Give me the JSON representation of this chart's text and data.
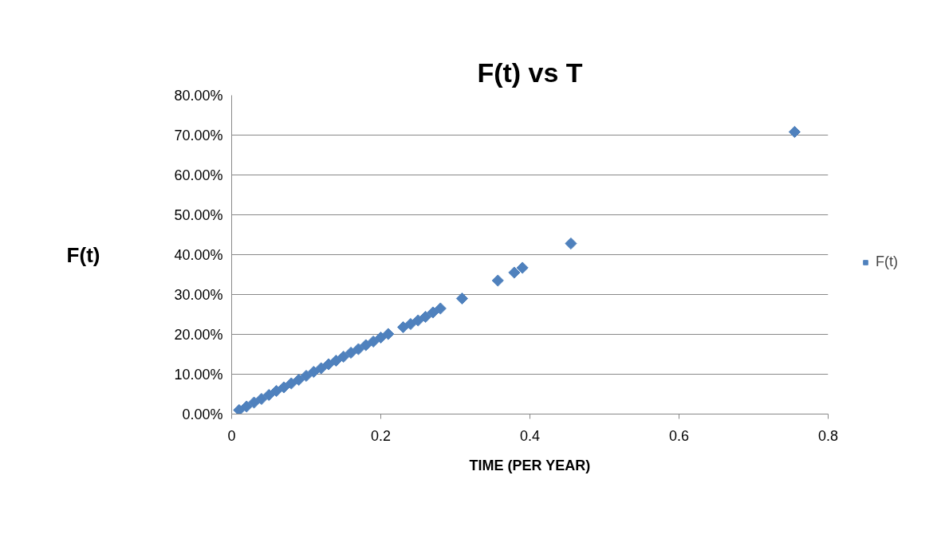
{
  "chart_data": {
    "type": "scatter",
    "title": "F(t) vs T",
    "xlabel": "TIME (PER YEAR)",
    "ylabel": "F(t)",
    "x": [
      0.01,
      0.02,
      0.03,
      0.04,
      0.05,
      0.06,
      0.07,
      0.08,
      0.09,
      0.1,
      0.11,
      0.12,
      0.13,
      0.14,
      0.15,
      0.16,
      0.17,
      0.18,
      0.19,
      0.2,
      0.21,
      0.23,
      0.24,
      0.25,
      0.26,
      0.27,
      0.28,
      0.309,
      0.357,
      0.379,
      0.39,
      0.455,
      0.755
    ],
    "series": [
      {
        "name": "F(t)",
        "color": "#4f81bd",
        "values": [
          1,
          1.9,
          2.9,
          3.8,
          4.8,
          5.8,
          6.7,
          7.7,
          8.6,
          9.6,
          10.6,
          11.5,
          12.5,
          13.4,
          14.4,
          15.4,
          16.3,
          17.3,
          18.2,
          19.2,
          20.1,
          21.8,
          22.6,
          23.5,
          24.4,
          25.5,
          26.5,
          29.0,
          33.5,
          35.5,
          36.7,
          42.8,
          70.8
        ]
      }
    ],
    "marker": "diamond",
    "grid": "y",
    "legend": "right",
    "xlim": [
      0,
      0.8
    ],
    "xticks": [
      0,
      0.2,
      0.4,
      0.6,
      0.8
    ],
    "ylim": [
      0,
      80
    ],
    "yticks": [
      {
        "value": 0,
        "label": "0.00%"
      },
      {
        "value": 10,
        "label": "10.00%"
      },
      {
        "value": 20,
        "label": "20.00%"
      },
      {
        "value": 30,
        "label": "30.00%"
      },
      {
        "value": 40,
        "label": "40.00%"
      },
      {
        "value": 50,
        "label": "50.00%"
      },
      {
        "value": 60,
        "label": "60.00%"
      },
      {
        "value": 70,
        "label": "70.00%"
      },
      {
        "value": 80,
        "label": "80.00%"
      }
    ]
  }
}
